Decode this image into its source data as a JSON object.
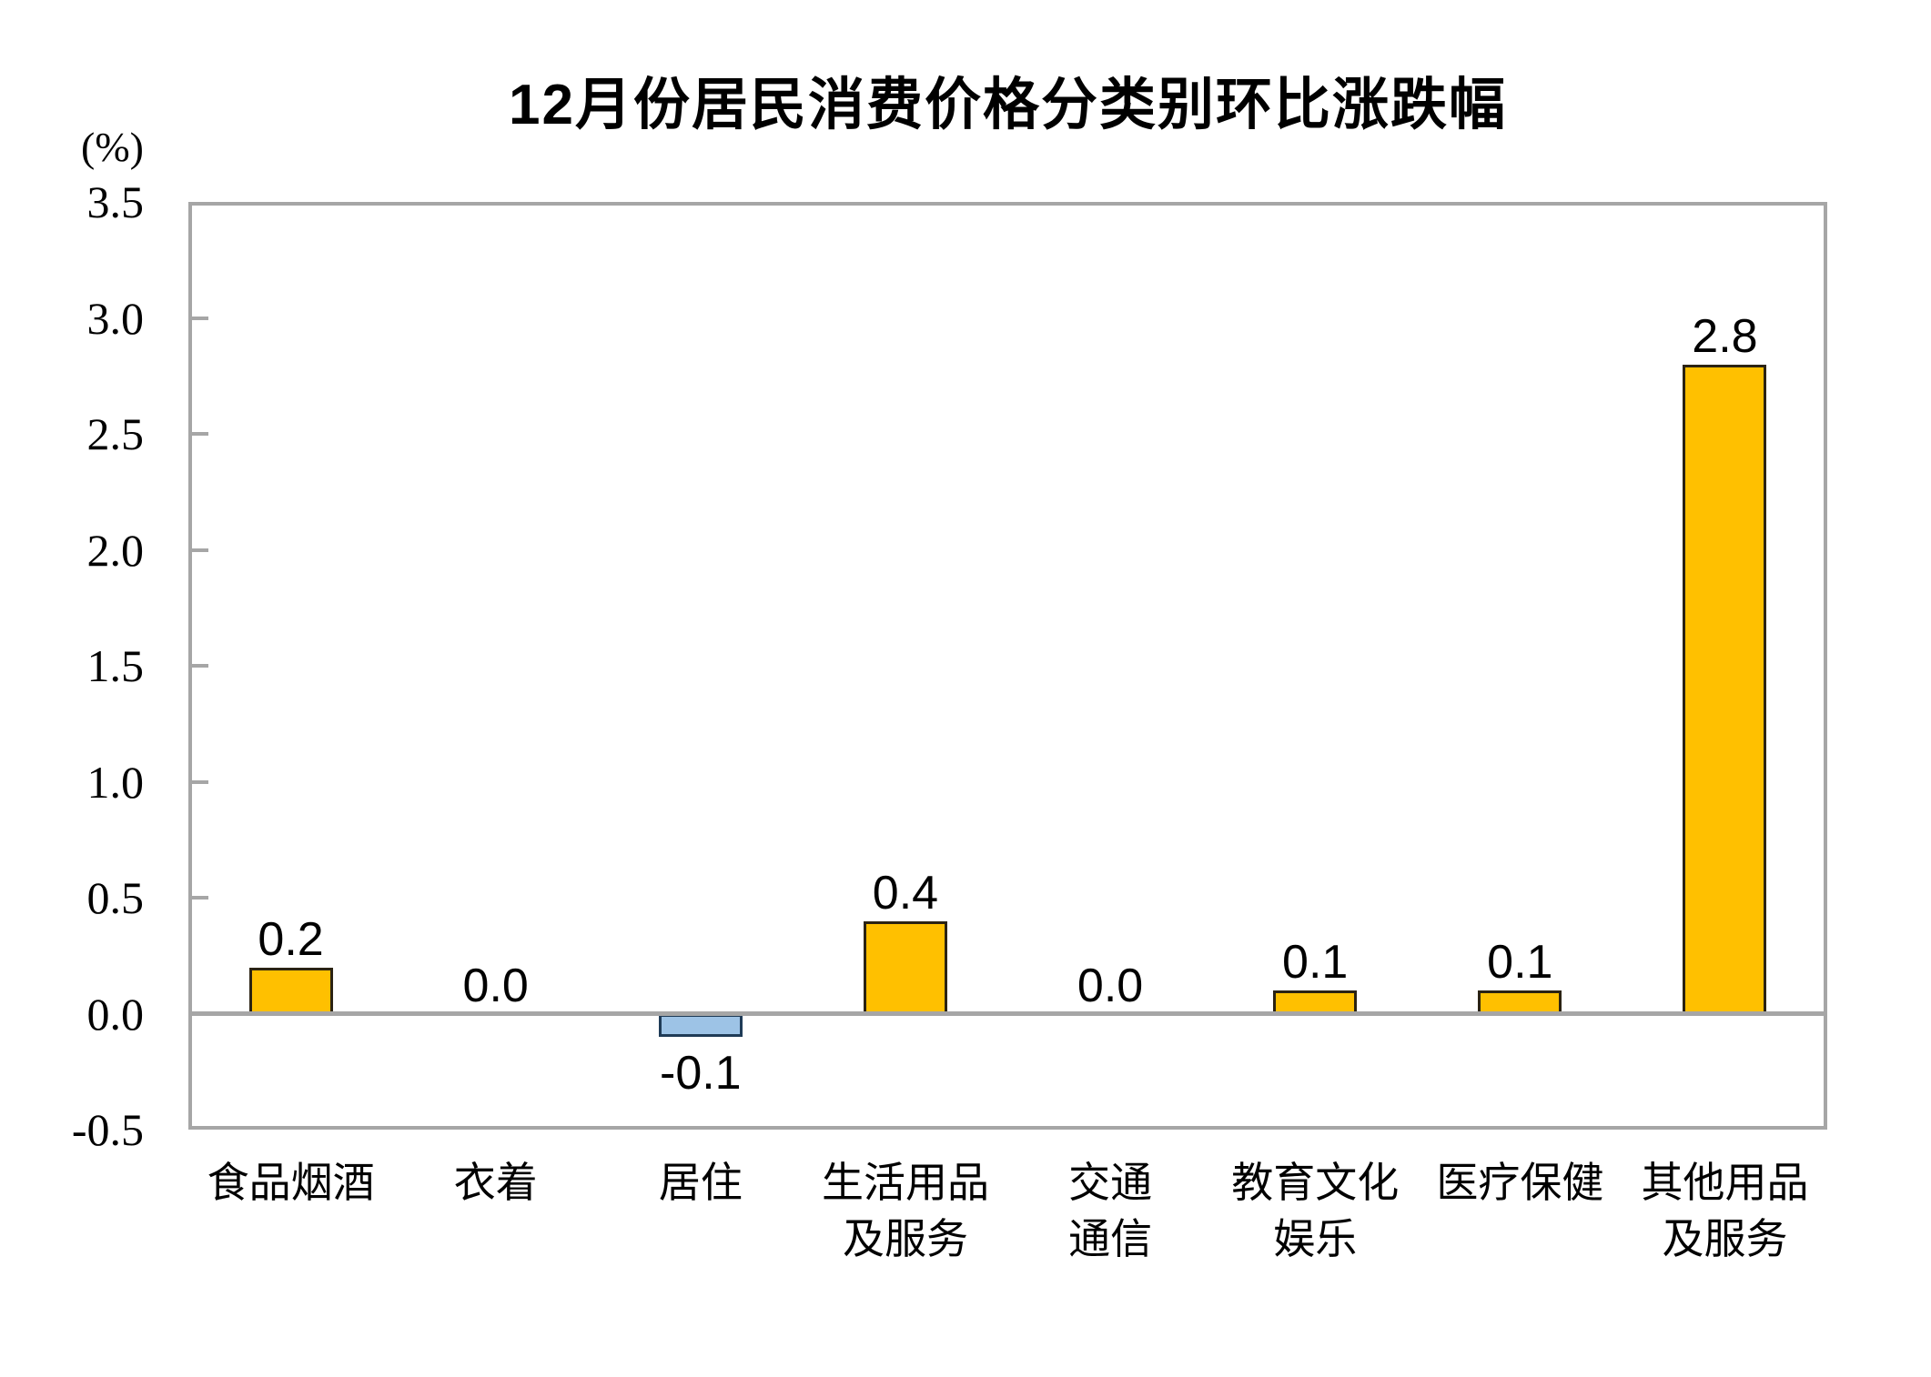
{
  "chart_data": {
    "type": "bar",
    "title": "12月份居民消费价格分类别环比涨跌幅",
    "unit_label": "(%)",
    "categories": [
      "食品烟酒",
      "衣着",
      "居住",
      "生活用品\n及服务",
      "交通\n通信",
      "教育文化\n娱乐",
      "医疗保健",
      "其他用品\n及服务"
    ],
    "values": [
      0.2,
      0.0,
      -0.1,
      0.4,
      0.0,
      0.1,
      0.1,
      2.8
    ],
    "y_ticks": [
      3.5,
      3.0,
      2.5,
      2.0,
      1.5,
      1.0,
      0.5,
      0.0,
      -0.5
    ],
    "ylim": [
      -0.5,
      3.5
    ],
    "ylabel": "(%)",
    "xlabel": "",
    "grid": false,
    "legend": "none",
    "colors": {
      "positive_bar_fill": "#FFC000",
      "positive_bar_border": "#2B2313",
      "negative_bar_fill": "#9DC3E6",
      "negative_bar_border": "#1F3B57",
      "axis_line": "#A6A6A6",
      "text": "#000000"
    }
  }
}
